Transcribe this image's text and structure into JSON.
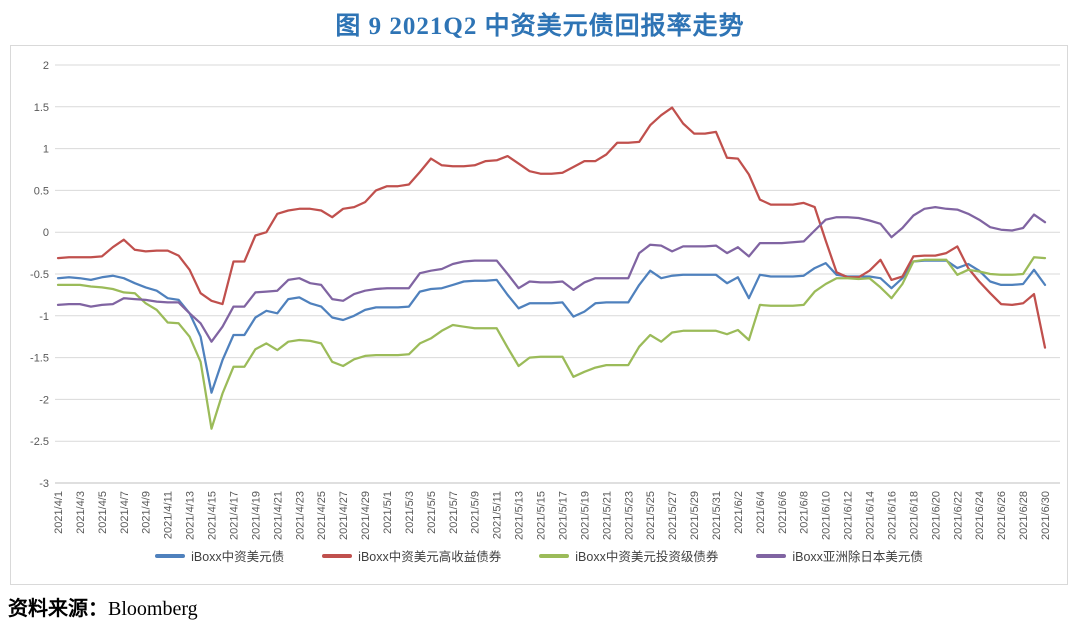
{
  "title": "图 9  2021Q2 中资美元债回报率走势",
  "source": {
    "label": "资料来源：",
    "value": "Bloomberg"
  },
  "colors": {
    "title": "#2E74B5",
    "grid": "#D9D9D9",
    "axis_line": "#BFBFBF",
    "axis_text": "#595959",
    "legend_text": "#404040"
  },
  "chart_data": {
    "type": "line",
    "title": "图 9  2021Q2 中资美元债回报率走势",
    "xlabel": "",
    "ylabel": "",
    "ylim": [
      -3,
      2
    ],
    "y_ticks": [
      2,
      1.5,
      1,
      0.5,
      0,
      -0.5,
      -1,
      -1.5,
      -2,
      -2.5,
      -3
    ],
    "grid": true,
    "legend_position": "bottom",
    "x_start": "2021/4/1",
    "x_end": "2021/6/30",
    "points_per_tick": 2,
    "x_tick_labels": [
      "2021/4/1",
      "2021/4/3",
      "2021/4/5",
      "2021/4/7",
      "2021/4/9",
      "2021/4/11",
      "2021/4/13",
      "2021/4/15",
      "2021/4/17",
      "2021/4/19",
      "2021/4/21",
      "2021/4/23",
      "2021/4/25",
      "2021/4/27",
      "2021/4/29",
      "2021/5/1",
      "2021/5/3",
      "2021/5/5",
      "2021/5/7",
      "2021/5/9",
      "2021/5/11",
      "2021/5/13",
      "2021/5/15",
      "2021/5/17",
      "2021/5/19",
      "2021/5/21",
      "2021/5/23",
      "2021/5/25",
      "2021/5/27",
      "2021/5/29",
      "2021/5/31",
      "2021/6/2",
      "2021/6/4",
      "2021/6/6",
      "2021/6/8",
      "2021/6/10",
      "2021/6/12",
      "2021/6/14",
      "2021/6/16",
      "2021/6/18",
      "2021/6/20",
      "2021/6/22",
      "2021/6/24",
      "2021/6/26",
      "2021/6/28",
      "2021/6/30"
    ],
    "series": [
      {
        "name": "iBoxx中资美元债",
        "color": "#4F81BD",
        "values": [
          -0.55,
          -0.54,
          -0.55,
          -0.57,
          -0.54,
          -0.52,
          -0.55,
          -0.61,
          -0.66,
          -0.7,
          -0.79,
          -0.81,
          -0.97,
          -1.25,
          -1.92,
          -1.53,
          -1.23,
          -1.23,
          -1.02,
          -0.94,
          -0.97,
          -0.8,
          -0.78,
          -0.85,
          -0.89,
          -1.02,
          -1.05,
          -1.0,
          -0.93,
          -0.9,
          -0.9,
          -0.9,
          -0.89,
          -0.71,
          -0.68,
          -0.67,
          -0.63,
          -0.59,
          -0.58,
          -0.58,
          -0.57,
          -0.75,
          -0.91,
          -0.85,
          -0.85,
          -0.85,
          -0.84,
          -1.01,
          -0.95,
          -0.85,
          -0.84,
          -0.84,
          -0.84,
          -0.63,
          -0.46,
          -0.55,
          -0.52,
          -0.51,
          -0.51,
          -0.51,
          -0.51,
          -0.61,
          -0.54,
          -0.79,
          -0.51,
          -0.53,
          -0.53,
          -0.53,
          -0.52,
          -0.43,
          -0.37,
          -0.51,
          -0.53,
          -0.53,
          -0.53,
          -0.55,
          -0.67,
          -0.55,
          -0.35,
          -0.34,
          -0.34,
          -0.34,
          -0.43,
          -0.38,
          -0.46,
          -0.59,
          -0.63,
          -0.63,
          -0.62,
          -0.45,
          -0.63
        ]
      },
      {
        "name": "iBoxx中资美元高收益债券",
        "color": "#C0504D",
        "values": [
          -0.31,
          -0.3,
          -0.3,
          -0.3,
          -0.29,
          -0.18,
          -0.09,
          -0.21,
          -0.23,
          -0.22,
          -0.22,
          -0.28,
          -0.45,
          -0.73,
          -0.82,
          -0.86,
          -0.35,
          -0.35,
          -0.04,
          0.0,
          0.22,
          0.26,
          0.28,
          0.28,
          0.26,
          0.18,
          0.28,
          0.3,
          0.36,
          0.5,
          0.55,
          0.55,
          0.57,
          0.72,
          0.88,
          0.8,
          0.79,
          0.79,
          0.8,
          0.85,
          0.86,
          0.91,
          0.82,
          0.73,
          0.7,
          0.7,
          0.71,
          0.78,
          0.85,
          0.85,
          0.93,
          1.07,
          1.07,
          1.08,
          1.28,
          1.4,
          1.49,
          1.3,
          1.18,
          1.18,
          1.2,
          0.89,
          0.88,
          0.69,
          0.39,
          0.33,
          0.33,
          0.33,
          0.35,
          0.3,
          -0.1,
          -0.48,
          -0.54,
          -0.54,
          -0.46,
          -0.33,
          -0.57,
          -0.53,
          -0.29,
          -0.28,
          -0.28,
          -0.25,
          -0.17,
          -0.43,
          -0.59,
          -0.73,
          -0.86,
          -0.87,
          -0.85,
          -0.74,
          -1.38
        ]
      },
      {
        "name": "iBoxx中资美元投资级债券",
        "color": "#9BBB59",
        "values": [
          -0.63,
          -0.63,
          -0.63,
          -0.65,
          -0.66,
          -0.68,
          -0.72,
          -0.73,
          -0.85,
          -0.93,
          -1.08,
          -1.09,
          -1.25,
          -1.55,
          -2.35,
          -1.93,
          -1.61,
          -1.61,
          -1.4,
          -1.33,
          -1.41,
          -1.31,
          -1.29,
          -1.3,
          -1.33,
          -1.55,
          -1.6,
          -1.52,
          -1.48,
          -1.47,
          -1.47,
          -1.47,
          -1.46,
          -1.33,
          -1.27,
          -1.18,
          -1.11,
          -1.13,
          -1.15,
          -1.15,
          -1.15,
          -1.38,
          -1.6,
          -1.5,
          -1.49,
          -1.49,
          -1.49,
          -1.73,
          -1.67,
          -1.62,
          -1.59,
          -1.59,
          -1.59,
          -1.37,
          -1.23,
          -1.31,
          -1.2,
          -1.18,
          -1.18,
          -1.18,
          -1.18,
          -1.22,
          -1.17,
          -1.29,
          -0.87,
          -0.88,
          -0.88,
          -0.88,
          -0.87,
          -0.71,
          -0.62,
          -0.55,
          -0.55,
          -0.56,
          -0.55,
          -0.66,
          -0.79,
          -0.62,
          -0.35,
          -0.33,
          -0.33,
          -0.33,
          -0.51,
          -0.45,
          -0.47,
          -0.5,
          -0.51,
          -0.51,
          -0.5,
          -0.3,
          -0.31
        ]
      },
      {
        "name": "iBoxx亚洲除日本美元债",
        "color": "#8064A2",
        "values": [
          -0.87,
          -0.86,
          -0.86,
          -0.89,
          -0.87,
          -0.86,
          -0.79,
          -0.8,
          -0.81,
          -0.83,
          -0.84,
          -0.84,
          -0.97,
          -1.09,
          -1.31,
          -1.13,
          -0.89,
          -0.89,
          -0.72,
          -0.71,
          -0.7,
          -0.57,
          -0.55,
          -0.61,
          -0.63,
          -0.8,
          -0.82,
          -0.74,
          -0.7,
          -0.68,
          -0.67,
          -0.67,
          -0.67,
          -0.49,
          -0.46,
          -0.44,
          -0.38,
          -0.35,
          -0.34,
          -0.34,
          -0.34,
          -0.5,
          -0.67,
          -0.59,
          -0.6,
          -0.6,
          -0.59,
          -0.69,
          -0.6,
          -0.55,
          -0.55,
          -0.55,
          -0.55,
          -0.25,
          -0.15,
          -0.16,
          -0.23,
          -0.17,
          -0.17,
          -0.17,
          -0.16,
          -0.25,
          -0.18,
          -0.29,
          -0.13,
          -0.13,
          -0.13,
          -0.12,
          -0.11,
          0.02,
          0.15,
          0.18,
          0.18,
          0.17,
          0.14,
          0.1,
          -0.06,
          0.05,
          0.2,
          0.28,
          0.3,
          0.28,
          0.27,
          0.22,
          0.15,
          0.06,
          0.03,
          0.02,
          0.05,
          0.21,
          0.12
        ]
      }
    ]
  }
}
